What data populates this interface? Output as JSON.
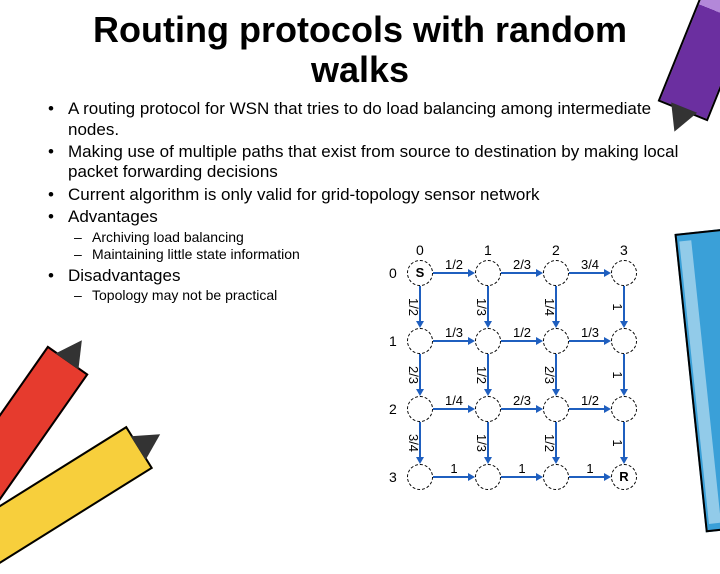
{
  "title": "Routing protocols with random walks",
  "bullets": [
    "A routing protocol for WSN that tries to do load balancing among intermediate nodes.",
    "Making use of multiple paths that exist from source to destination by making local packet forwarding decisions",
    "Current algorithm is only valid for grid-topology sensor network",
    "Advantages",
    "Disadvantages"
  ],
  "sub_adv": [
    "Archiving load balancing",
    "Maintaining little state information"
  ],
  "sub_dis": [
    "Topology may not be practical"
  ],
  "diagram": {
    "type": "network",
    "cell": 68,
    "node_r": 26,
    "start_label": "S",
    "end_label": "R",
    "col_labels": [
      "0",
      "1",
      "2",
      "3"
    ],
    "row_labels": [
      "0",
      "1",
      "2",
      "3"
    ],
    "arrow_color": "#1f5fbf",
    "node_border": "#000000",
    "h_labels": [
      [
        "1/2",
        "2/3",
        "3/4"
      ],
      [
        "1/3",
        "1/2",
        "1/3"
      ],
      [
        "1/4",
        "2/3",
        "1/2"
      ],
      [
        "1",
        "1",
        "1"
      ]
    ],
    "v_labels": [
      [
        "1/2",
        "1/3",
        "1/4",
        "1"
      ],
      [
        "2/3",
        "1/2",
        "2/3",
        "1"
      ],
      [
        "3/4",
        "1/3",
        "1/2",
        "1"
      ]
    ]
  }
}
